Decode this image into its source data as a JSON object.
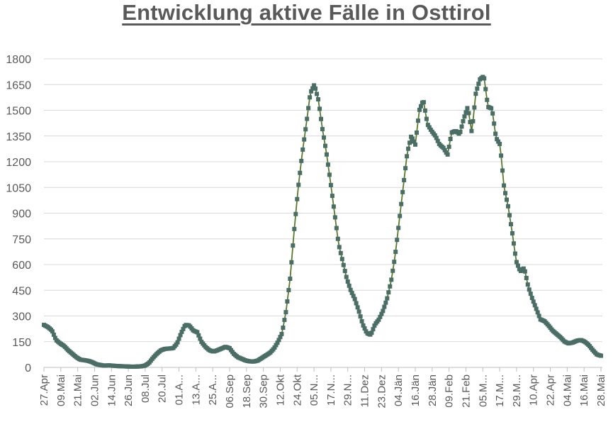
{
  "chart_data": {
    "type": "line",
    "title": "Entwicklung aktive Fälle in Osttirol",
    "xlabel": "",
    "ylabel": "",
    "ylim": [
      0,
      1800
    ],
    "yticks": [
      0,
      150,
      300,
      450,
      600,
      750,
      900,
      1050,
      1200,
      1350,
      1500,
      1650,
      1800
    ],
    "grid": true,
    "legend": null,
    "x_tick_labels": [
      "27.Apr",
      "09.Mai",
      "21.Mai",
      "02.Jun",
      "14.Jun",
      "26.Jun",
      "08.Jul",
      "20.Jul",
      "01.A...",
      "13.A...",
      "25.A...",
      "06.Sep",
      "18.Sep",
      "30.Sep",
      "12.Okt",
      "24.Okt",
      "05.N...",
      "17.N...",
      "29.N...",
      "11.Dez",
      "23.Dez",
      "04.Jän",
      "16.Jän",
      "28.Jän",
      "09.Feb",
      "21.Feb",
      "05.M...",
      "17.M...",
      "29.M...",
      "10.Apr",
      "22.Apr",
      "04.Mai",
      "16.Mai",
      "28.Mai"
    ],
    "x_tick_interval_days": 12,
    "sample_interval_days": 3,
    "series": [
      {
        "name": "aktive Fälle",
        "line_color": "#5a7a2a",
        "marker_color": "#4a6e66",
        "values": [
          248,
          235,
          215,
          160,
          140,
          125,
          100,
          80,
          60,
          45,
          42,
          38,
          30,
          18,
          14,
          10,
          12,
          10,
          8,
          7,
          6,
          5,
          4,
          5,
          6,
          10,
          25,
          55,
          80,
          100,
          108,
          110,
          112,
          140,
          200,
          248,
          245,
          215,
          205,
          150,
          120,
          100,
          92,
          100,
          110,
          120,
          112,
          80,
          60,
          50,
          40,
          35,
          34,
          40,
          55,
          70,
          85,
          110,
          150,
          200,
          330,
          520,
          800,
          1050,
          1250,
          1420,
          1600,
          1650,
          1560,
          1390,
          1250,
          1080,
          900,
          720,
          620,
          520,
          450,
          400,
          330,
          250,
          200,
          190,
          250,
          280,
          330,
          400,
          500,
          650,
          850,
          1050,
          1250,
          1350,
          1300,
          1500,
          1560,
          1420,
          1380,
          1350,
          1300,
          1280,
          1240,
          1370,
          1380,
          1360,
          1450,
          1520,
          1370,
          1600,
          1680,
          1700,
          1520,
          1510,
          1340,
          1300,
          1050,
          940,
          790,
          620,
          560,
          580,
          470,
          400,
          340,
          280,
          270,
          245,
          215,
          195,
          175,
          150,
          140,
          145,
          155,
          160,
          150,
          130,
          100,
          75,
          68
        ]
      }
    ]
  }
}
